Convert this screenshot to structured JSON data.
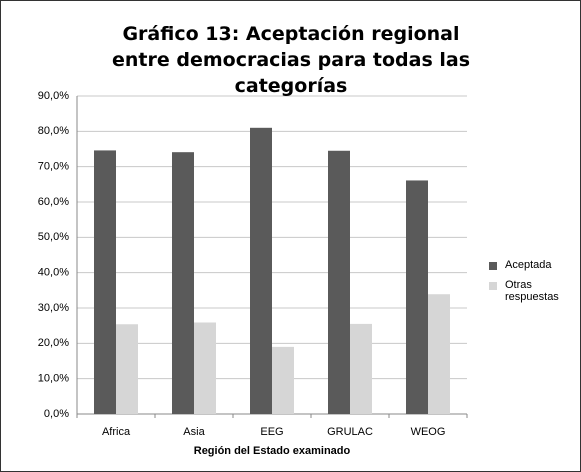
{
  "chart_data": {
    "type": "bar",
    "title": "Gráfico 13: Aceptación regional entre democracias para todas las categorías",
    "x_label": "Región del Estado examinado",
    "categories": [
      "Africa",
      "Asia",
      "EEG",
      "GRULAC",
      "WEOG"
    ],
    "series": [
      {
        "name": "Aceptada",
        "color": "#5a5a5a",
        "values": [
          74.6,
          74.1,
          81.0,
          74.5,
          66.1
        ]
      },
      {
        "name": "Otras respuestas",
        "color": "#d6d6d6",
        "values": [
          25.4,
          25.9,
          19.0,
          25.5,
          33.9
        ]
      }
    ],
    "ylim": [
      0,
      90
    ],
    "yticks": [
      {
        "value": 0,
        "label": "0,0%"
      },
      {
        "value": 10,
        "label": "10,0%"
      },
      {
        "value": 20,
        "label": "20,0%"
      },
      {
        "value": 30,
        "label": "30,0%"
      },
      {
        "value": 40,
        "label": "40,0%"
      },
      {
        "value": 50,
        "label": "50,0%"
      },
      {
        "value": 60,
        "label": "60,0%"
      },
      {
        "value": 70,
        "label": "70,0%"
      },
      {
        "value": 80,
        "label": "80,0%"
      },
      {
        "value": 90,
        "label": "90,0%"
      }
    ],
    "grid": true,
    "legend": "right"
  }
}
